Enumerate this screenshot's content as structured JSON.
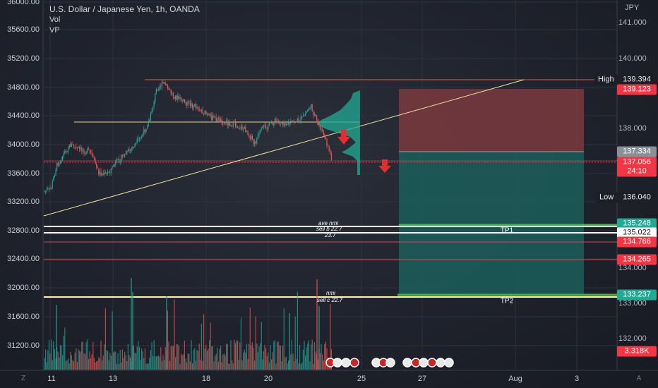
{
  "legend": {
    "title": "U.S. Dollar / Japanese Yen, 1h, OANDA",
    "indicator_1": "Vol",
    "indicator_2": "VP"
  },
  "currency": "JPY",
  "left_axis_labels": [
    "36000.00",
    "35600.00",
    "35200.00",
    "34800.00",
    "34400.00",
    "34000.00",
    "33600.00",
    "33200.00",
    "32800.00",
    "32400.00",
    "32000.00",
    "31600.00",
    "31200.00"
  ],
  "right_axis_labels": [
    "141.000",
    "140.000",
    "138.000",
    "134.000",
    "133.000",
    "132.000"
  ],
  "x_axis_labels": [
    "11",
    "13",
    "18",
    "20",
    "25",
    "27",
    "Aug",
    "3"
  ],
  "price_tags": {
    "high_label": "High",
    "high_value": "139.394",
    "stop": "139.123",
    "entry": "137.334",
    "current_price": "137.056",
    "countdown": "24:10",
    "low_label": "Low",
    "low_value": "136.040",
    "level_1": "135.248",
    "level_2": "135.022",
    "level_3": "134.766",
    "level_4": "134.265",
    "level_5": "133.237",
    "volume": "3.318K"
  },
  "chart_labels": {
    "tp1": "TP1",
    "tp2": "TP2",
    "note_ave": "ave nmi",
    "note_sell_1": "sell b 22.7",
    "note_237": "23.7",
    "note_nmi": "nmi",
    "note_sell_2": "sell c 22.7"
  },
  "corner_buttons": {
    "left": "Z",
    "right": "A"
  },
  "colors": {
    "up_candle": "#26a69a",
    "down_candle": "#ef5350",
    "stop_zone": "#7a3a3e",
    "target_zone": "#1b5e5a",
    "tag_red": "#f23645",
    "tag_green": "#22ab94",
    "trendline": "#f0e3a0"
  }
}
